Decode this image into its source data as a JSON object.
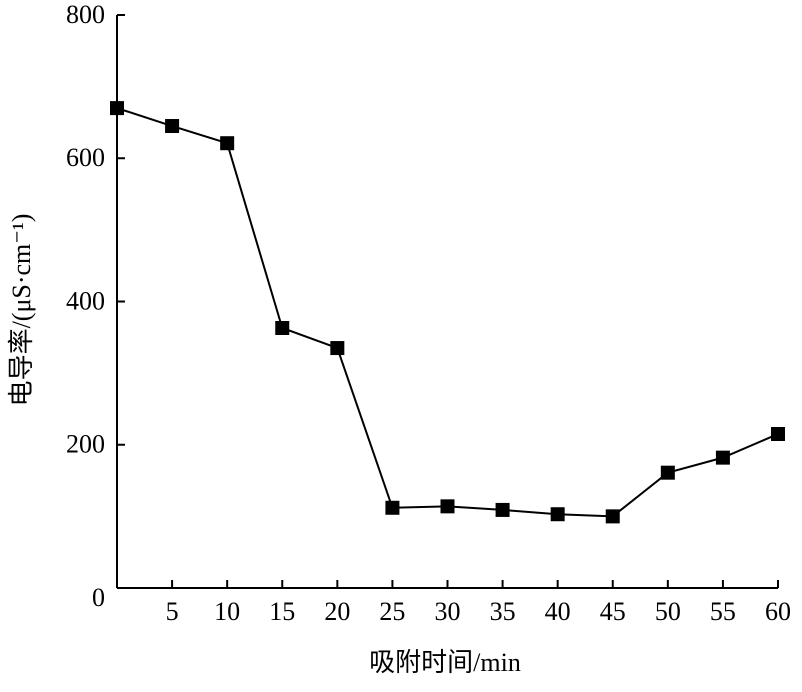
{
  "chart_data": {
    "type": "line",
    "x_label": "吸附时间/min",
    "y_label": "电导率/(μS·cm⁻¹)",
    "x": [
      0,
      5,
      10,
      15,
      20,
      25,
      30,
      35,
      40,
      45,
      50,
      55,
      60
    ],
    "series": [
      {
        "color": "#000000",
        "values": [
          670,
          645,
          621,
          363,
          335,
          112,
          114,
          109,
          103,
          100,
          161,
          182,
          215
        ]
      }
    ],
    "xlim": [
      0,
      60
    ],
    "xticks": [
      5,
      10,
      15,
      20,
      25,
      30,
      35,
      40,
      45,
      50,
      55,
      60
    ],
    "ylim": [
      0,
      800
    ],
    "yticks": [
      0,
      200,
      400,
      600,
      800
    ],
    "grid": false
  }
}
